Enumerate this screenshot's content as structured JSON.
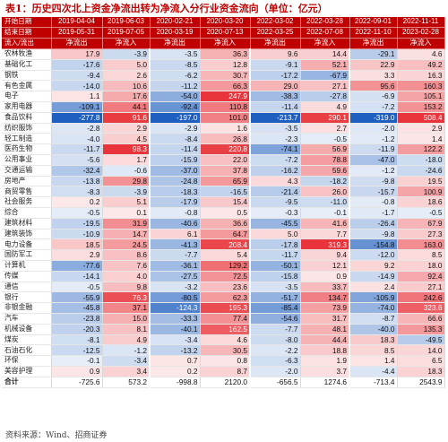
{
  "title": "表1：历史四次北上资金净流出转为净流入分行业资金流向（单位：亿元）",
  "source": "资料来源：Wind、招商证券",
  "header": {
    "start_label": "开始日期",
    "end_label": "结束日期",
    "flow_label": "流入/流出",
    "periods": [
      {
        "start": "2019-04-04",
        "end": "2019-05-31",
        "flow": "净流出"
      },
      {
        "start": "2019-06-03",
        "end": "2019-07-05",
        "flow": "净流入"
      },
      {
        "start": "2020-02-21",
        "end": "2020-03-19",
        "flow": "净流出"
      },
      {
        "start": "2020-03-20",
        "end": "2020-07-13",
        "flow": "净流入"
      },
      {
        "start": "2022-03-02",
        "end": "2022-03-25",
        "flow": "净流出"
      },
      {
        "start": "2022-03-28",
        "end": "2022-07-08",
        "flow": "净流入"
      },
      {
        "start": "2022-09-01",
        "end": "2022-11-10",
        "flow": "净流出"
      },
      {
        "start": "2022-11-11",
        "end": "2023-02-28",
        "flow": "净流入"
      }
    ]
  },
  "rows": [
    {
      "name": "农林牧渔",
      "values": [
        "17.9",
        "-3.9",
        "-3.5",
        "36.3",
        "9.6",
        "14.4",
        "-29.1",
        "4.6"
      ]
    },
    {
      "name": "基础化工",
      "values": [
        "-17.6",
        "5.0",
        "-8.5",
        "12.8",
        "-9.1",
        "52.1",
        "22.9",
        "49.2"
      ]
    },
    {
      "name": "钢铁",
      "values": [
        "-9.4",
        "2.6",
        "-6.2",
        "30.7",
        "-17.2",
        "-67.9",
        "3.3",
        "16.3"
      ]
    },
    {
      "name": "有色金属",
      "values": [
        "-14.0",
        "10.6",
        "-11.2",
        "66.3",
        "29.0",
        "27.1",
        "95.6",
        "160.3"
      ]
    },
    {
      "name": "电子",
      "values": [
        "1.1",
        "17.6",
        "-54.0",
        "247.9",
        "-38.3",
        "-27.8",
        "-6.9",
        "105.1"
      ]
    },
    {
      "name": "家用电器",
      "values": [
        "-109.1",
        "44.1",
        "-92.4",
        "110.8",
        "-11.4",
        "4.9",
        "-7.2",
        "153.2"
      ]
    },
    {
      "name": "食品饮料",
      "values": [
        "-277.8",
        "91.6",
        "-197.0",
        "101.0",
        "-213.7",
        "290.1",
        "-319.0",
        "508.4"
      ]
    },
    {
      "name": "纺织服饰",
      "values": [
        "-2.8",
        "2.9",
        "-2.9",
        "1.6",
        "-3.5",
        "2.7",
        "-2.0",
        "2.9"
      ]
    },
    {
      "name": "轻工制造",
      "values": [
        "-4.0",
        "4.5",
        "-8.4",
        "26.8",
        "-2.3",
        "-0.5",
        "-1.2",
        "1.4"
      ]
    },
    {
      "name": "医药生物",
      "values": [
        "-11.7",
        "98.3",
        "-11.4",
        "220.8",
        "-74.1",
        "56.9",
        "-11.9",
        "122.2"
      ]
    },
    {
      "name": "公用事业",
      "values": [
        "-5.6",
        "1.7",
        "-15.9",
        "22.0",
        "-7.2",
        "78.8",
        "-47.0",
        "-18.0"
      ]
    },
    {
      "name": "交通运输",
      "values": [
        "-32.4",
        "-0.6",
        "-37.0",
        "37.8",
        "-16.2",
        "59.6",
        "-1.2",
        "-24.6"
      ]
    },
    {
      "name": "房地产",
      "values": [
        "-13.8",
        "29.8",
        "-24.8",
        "65.9",
        "4.3",
        "-18.2",
        "-9.8",
        "19.5"
      ]
    },
    {
      "name": "商贸零售",
      "values": [
        "-8.3",
        "-3.9",
        "-18.3",
        "-16.5",
        "-21.4",
        "26.0",
        "-15.7",
        "100.9"
      ]
    },
    {
      "name": "社会服务",
      "values": [
        "0.2",
        "5.1",
        "-17.9",
        "15.4",
        "-9.5",
        "-11.0",
        "-0.8",
        "18.6"
      ]
    },
    {
      "name": "综合",
      "values": [
        "-0.5",
        "0.1",
        "-0.8",
        "0.5",
        "-0.3",
        "-0.1",
        "-1.7",
        "-0.5"
      ]
    },
    {
      "name": "建筑材料",
      "values": [
        "-19.5",
        "31.9",
        "-40.6",
        "36.6",
        "-45.5",
        "41.6",
        "-26.4",
        "67.9"
      ]
    },
    {
      "name": "建筑装饰",
      "values": [
        "-10.9",
        "14.7",
        "6.1",
        "64.7",
        "5.0",
        "7.7",
        "-9.8",
        "27.3"
      ]
    },
    {
      "name": "电力设备",
      "values": [
        "18.5",
        "24.5",
        "-41.3",
        "208.4",
        "-17.8",
        "319.3",
        "-154.8",
        "163.0"
      ]
    },
    {
      "name": "国防军工",
      "values": [
        "2.9",
        "8.6",
        "-7.7",
        "5.4",
        "-11.7",
        "9.4",
        "-12.0",
        "8.5"
      ]
    },
    {
      "name": "计算机",
      "values": [
        "-77.6",
        "7.6",
        "-36.1",
        "129.2",
        "-50.1",
        "12.1",
        "9.2",
        "18.0"
      ]
    },
    {
      "name": "传媒",
      "values": [
        "-14.1",
        "4.0",
        "-27.5",
        "72.5",
        "-15.8",
        "0.9",
        "-14.9",
        "92.4"
      ]
    },
    {
      "name": "通信",
      "values": [
        "-0.5",
        "9.8",
        "-3.2",
        "23.6",
        "-3.5",
        "33.7",
        "2.4",
        "27.1"
      ]
    },
    {
      "name": "银行",
      "values": [
        "-55.9",
        "76.3",
        "-80.5",
        "62.3",
        "-51.7",
        "134.7",
        "-105.9",
        "242.6"
      ]
    },
    {
      "name": "非银金融",
      "values": [
        "-45.8",
        "37.1",
        "-124.3",
        "195.3",
        "-85.4",
        "73.9",
        "-74.0",
        "323.6"
      ]
    },
    {
      "name": "汽车",
      "values": [
        "-23.8",
        "15.0",
        "-33.3",
        "77.4",
        "-54.6",
        "31.7",
        "-8.7",
        "66.6"
      ]
    },
    {
      "name": "机械设备",
      "values": [
        "-20.3",
        "8.1",
        "-40.1",
        "162.5",
        "-7.7",
        "48.1",
        "-40.0",
        "135.3"
      ]
    },
    {
      "name": "煤炭",
      "values": [
        "-8.1",
        "4.9",
        "-3.4",
        "4.6",
        "-8.0",
        "44.4",
        "18.3",
        "-49.5"
      ]
    },
    {
      "name": "石油石化",
      "values": [
        "-12.5",
        "-1.2",
        "-13.2",
        "30.5",
        "-2.2",
        "18.8",
        "8.5",
        "14.0"
      ]
    },
    {
      "name": "环保",
      "values": [
        "-0.1",
        "-3.4",
        "0.7",
        "0.8",
        "-6.3",
        "1.9",
        "1.4",
        "6.5"
      ]
    },
    {
      "name": "美容护理",
      "values": [
        "0.9",
        "3.4",
        "0.2",
        "8.7",
        "-2.0",
        "3.7",
        "-4.4",
        "18.3"
      ]
    }
  ],
  "total": {
    "name": "合计",
    "values": [
      "-725.6",
      "573.2",
      "-998.8",
      "2120.0",
      "-656.5",
      "1274.6",
      "-713.4",
      "2543.9"
    ]
  },
  "colors": {
    "header_red": "#c00000",
    "positive": "#e8343a",
    "negative": "#1f5fbf"
  }
}
